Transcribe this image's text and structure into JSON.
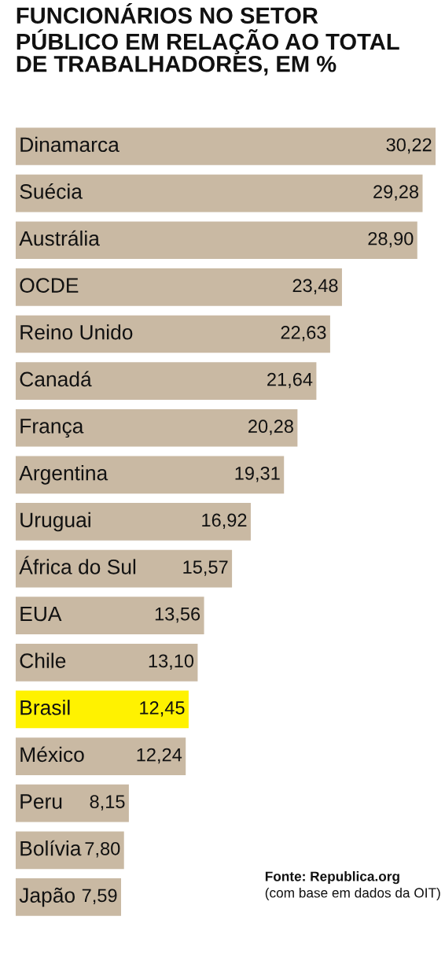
{
  "chart_data": {
    "type": "bar",
    "orientation": "horizontal",
    "title": "FUNCIONÁRIOS NO SETOR\nPÚBLICO EM RELAÇÃO AO TOTAL\nDE TRABALHADORES, EM %",
    "categories": [
      "Dinamarca",
      "Suécia",
      "Austrália",
      "OCDE",
      "Reino Unido",
      "Canadá",
      "França",
      "Argentina",
      "Uruguai",
      "África do Sul",
      "EUA",
      "Chile",
      "Brasil",
      "México",
      "Peru",
      "Bolívia",
      "Japão"
    ],
    "values": [
      30.22,
      29.28,
      28.9,
      23.48,
      22.63,
      21.64,
      20.28,
      19.31,
      16.92,
      15.57,
      13.56,
      13.1,
      12.45,
      12.24,
      8.15,
      7.8,
      7.59
    ],
    "value_labels": [
      "30,22",
      "29,28",
      "28,90",
      "23,48",
      "22,63",
      "21,64",
      "20,28",
      "19,31",
      "16,92",
      "15,57",
      "13,56",
      "13,10",
      "12,45",
      "12,24",
      "8,15",
      "7,80",
      "7,59"
    ],
    "colors": [
      "#c9b9a3",
      "#c9b9a3",
      "#c9b9a3",
      "#c9b9a3",
      "#c9b9a3",
      "#c9b9a3",
      "#c9b9a3",
      "#c9b9a3",
      "#c9b9a3",
      "#c9b9a3",
      "#c9b9a3",
      "#c9b9a3",
      "#fff200",
      "#c9b9a3",
      "#c9b9a3",
      "#c9b9a3",
      "#c9b9a3"
    ],
    "annotations": [
      "Fonte: Republica.org",
      "(com base em dados da OIT)"
    ],
    "legend": false
  }
}
